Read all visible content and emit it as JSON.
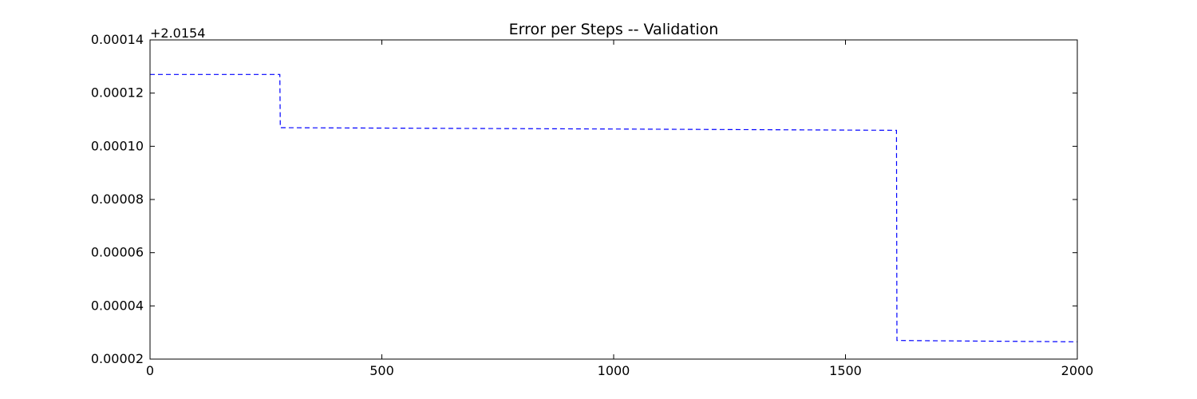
{
  "chart_data": {
    "type": "line",
    "title": "Error per Steps -- Validation",
    "xlabel": "",
    "ylabel": "",
    "y_offset_label": "+2.0154",
    "xlim": [
      0,
      2000
    ],
    "ylim": [
      2e-05,
      0.00014
    ],
    "x_ticks": [
      0,
      500,
      1000,
      1500,
      2000
    ],
    "x_tick_labels": [
      "0",
      "500",
      "1000",
      "1500",
      "2000"
    ],
    "y_ticks": [
      2e-05,
      4e-05,
      6e-05,
      8e-05,
      0.0001,
      0.00012,
      0.00014
    ],
    "y_tick_labels": [
      "0.00002",
      "0.00004",
      "0.00006",
      "0.00008",
      "0.00010",
      "0.00012",
      "0.00014"
    ],
    "grid": false,
    "series": [
      {
        "color": "#0000ff",
        "style": "dashed",
        "x": [
          0,
          280,
          281,
          1000,
          1610,
          1611,
          2000
        ],
        "y": [
          0.000127,
          0.000127,
          0.000107,
          0.0001065,
          0.000106,
          2.7e-05,
          2.65e-05
        ]
      }
    ]
  }
}
